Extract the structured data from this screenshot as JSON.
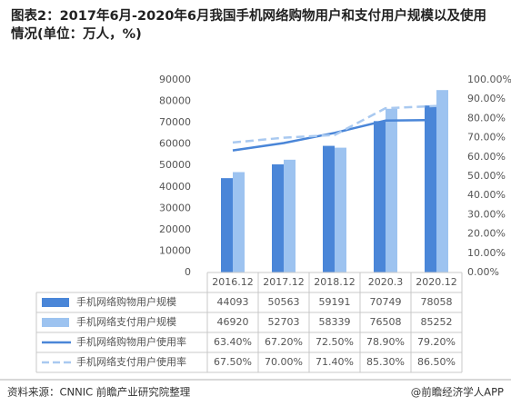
{
  "chart_data": {
    "type": "bar-line-table",
    "title": "图表2：2017年6月-2020年6月我国手机网络购物用户和支付用户规模以及使用情况(单位：万人，%)",
    "categories": [
      "2016.12",
      "2017.12",
      "2018.12",
      "2020.3",
      "2020.12"
    ],
    "series": [
      {
        "name": "手机网络购物用户规模",
        "type": "bar",
        "color": "#4a86d8",
        "values": [
          44093,
          50563,
          59191,
          70749,
          78058
        ]
      },
      {
        "name": "手机网络支付用户规模",
        "type": "bar",
        "color": "#9dc3f0",
        "values": [
          46920,
          52703,
          58339,
          76508,
          85252
        ]
      },
      {
        "name": "手机网络购物用户使用率",
        "type": "line",
        "axis": "y2",
        "color": "#4a86d8",
        "values": [
          63.4,
          67.2,
          72.5,
          78.9,
          79.2
        ],
        "value_labels": [
          "63.40%",
          "67.20%",
          "72.50%",
          "78.90%",
          "79.20%"
        ]
      },
      {
        "name": "手机网络支付用户使用率",
        "type": "line",
        "axis": "y2",
        "dashed": true,
        "color": "#a9c9f0",
        "values": [
          67.5,
          70.0,
          71.4,
          85.3,
          86.5
        ],
        "value_labels": [
          "67.50%",
          "70.00%",
          "71.40%",
          "85.30%",
          "86.50%"
        ]
      }
    ],
    "ylim": [
      0,
      90000
    ],
    "yticks": [
      0,
      10000,
      20000,
      30000,
      40000,
      50000,
      60000,
      70000,
      80000,
      90000
    ],
    "y2lim": [
      0,
      100
    ],
    "y2ticks": [
      {
        "value": 0,
        "label": "0.00%"
      },
      {
        "value": 10,
        "label": "10.00%"
      },
      {
        "value": 20,
        "label": "20.00%"
      },
      {
        "value": 30,
        "label": "30.00%"
      },
      {
        "value": 40,
        "label": "40.00%"
      },
      {
        "value": 50,
        "label": "50.00%"
      },
      {
        "value": 60,
        "label": "60.00%"
      },
      {
        "value": 70,
        "label": "70.00%"
      },
      {
        "value": 80,
        "label": "80.00%"
      },
      {
        "value": 90,
        "label": "90.00%"
      },
      {
        "value": 100,
        "label": "100.00%"
      }
    ],
    "source": "资料来源：CNNIC 前瞻产业研究院整理",
    "credit": "@前瞻经济学人APP"
  }
}
